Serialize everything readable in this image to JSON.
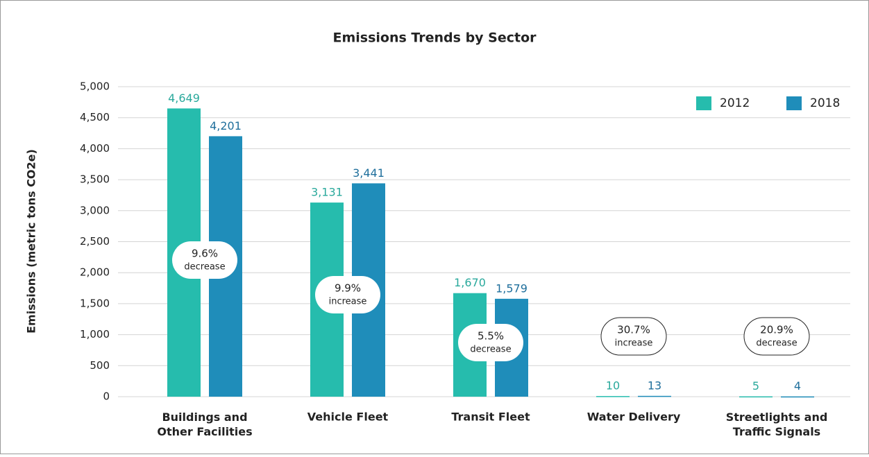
{
  "chart_data": {
    "type": "bar",
    "title": "Emissions Trends by Sector",
    "ylabel": "Emissions (metric tons CO2e)",
    "categories": [
      "Buildings and\nOther Facilities",
      "Vehicle Fleet",
      "Transit Fleet",
      "Water Delivery",
      "Streetlights and\nTraffic Signals"
    ],
    "series": [
      {
        "name": "2012",
        "color": "#26bcad",
        "label_color": "#2aa99c",
        "values": [
          4649,
          3131,
          1670,
          10,
          5
        ],
        "value_labels": [
          "4,649",
          "3,131",
          "1,670",
          "10",
          "5"
        ]
      },
      {
        "name": "2018",
        "color": "#1f8dba",
        "label_color": "#1f6f9c",
        "values": [
          4201,
          3441,
          1579,
          13,
          4
        ],
        "value_labels": [
          "4,201",
          "3,441",
          "1,579",
          "13",
          "4"
        ]
      }
    ],
    "annotations": [
      {
        "text": "9.6%",
        "subtext": "decrease"
      },
      {
        "text": "9.9%",
        "subtext": "increase"
      },
      {
        "text": "5.5%",
        "subtext": "decrease"
      },
      {
        "text": "30.7%",
        "subtext": "increase"
      },
      {
        "text": "20.9%",
        "subtext": "decrease"
      }
    ],
    "ylim": [
      0,
      5000
    ],
    "yticks": [
      0,
      500,
      {
        "value": 1000,
        "label": "1,000"
      },
      {
        "value": 1500,
        "label": "1,500"
      },
      {
        "value": 2000,
        "label": "2,000"
      },
      {
        "value": 2500,
        "label": "2,500"
      },
      {
        "value": 3000,
        "label": "3,000"
      },
      {
        "value": 3500,
        "label": "3,500"
      },
      {
        "value": 4000,
        "label": "4,000"
      },
      {
        "value": 4500,
        "label": "4,500"
      },
      {
        "value": 5000,
        "label": "5,000"
      }
    ],
    "grid": true,
    "legend": "top-right"
  }
}
